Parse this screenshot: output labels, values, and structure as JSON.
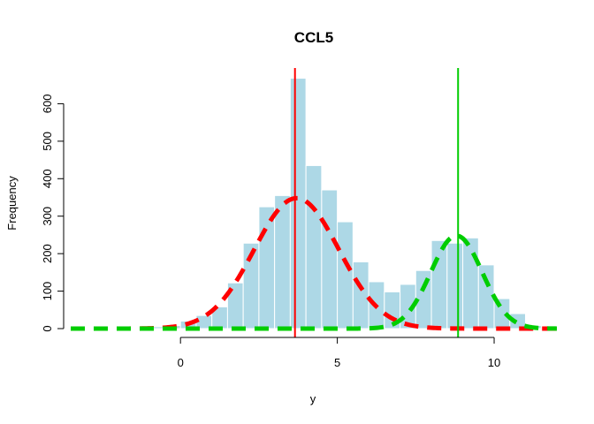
{
  "chart_data": {
    "type": "bar",
    "title": "CCL5",
    "xlabel": "y",
    "ylabel": "Frequency",
    "xlim": [
      -3.5,
      12
    ],
    "ylim": [
      0,
      700
    ],
    "x_ticks": [
      0,
      5,
      10
    ],
    "y_ticks": [
      0,
      100,
      200,
      300,
      400,
      500,
      600
    ],
    "bin_width": 0.5,
    "bins": [
      {
        "x0": -1.5,
        "count": 2
      },
      {
        "x0": -1.0,
        "count": 5
      },
      {
        "x0": -0.5,
        "count": 8
      },
      {
        "x0": 0.0,
        "count": 20
      },
      {
        "x0": 0.5,
        "count": 35
      },
      {
        "x0": 1.0,
        "count": 58
      },
      {
        "x0": 1.5,
        "count": 122
      },
      {
        "x0": 2.0,
        "count": 228
      },
      {
        "x0": 2.5,
        "count": 325
      },
      {
        "x0": 3.0,
        "count": 355
      },
      {
        "x0": 3.5,
        "count": 668
      },
      {
        "x0": 4.0,
        "count": 435
      },
      {
        "x0": 4.5,
        "count": 370
      },
      {
        "x0": 5.0,
        "count": 285
      },
      {
        "x0": 5.5,
        "count": 178
      },
      {
        "x0": 6.0,
        "count": 125
      },
      {
        "x0": 6.5,
        "count": 98
      },
      {
        "x0": 7.0,
        "count": 118
      },
      {
        "x0": 7.5,
        "count": 155
      },
      {
        "x0": 8.0,
        "count": 235
      },
      {
        "x0": 8.5,
        "count": 228
      },
      {
        "x0": 9.0,
        "count": 242
      },
      {
        "x0": 9.5,
        "count": 170
      },
      {
        "x0": 10.0,
        "count": 80
      },
      {
        "x0": 10.5,
        "count": 40
      },
      {
        "x0": 11.0,
        "count": 8
      }
    ],
    "fit_curves": [
      {
        "color": "#ff0000",
        "mean": 3.7,
        "sd": 1.35,
        "peak": 348
      },
      {
        "color": "#00cd00",
        "mean": 8.8,
        "sd": 0.82,
        "peak": 248
      }
    ],
    "vlines": [
      {
        "x": 3.65,
        "color": "#ff0000"
      },
      {
        "x": 8.85,
        "color": "#00cd00"
      }
    ],
    "bar_color": "#add8e6",
    "bar_border": "#ffffff"
  }
}
